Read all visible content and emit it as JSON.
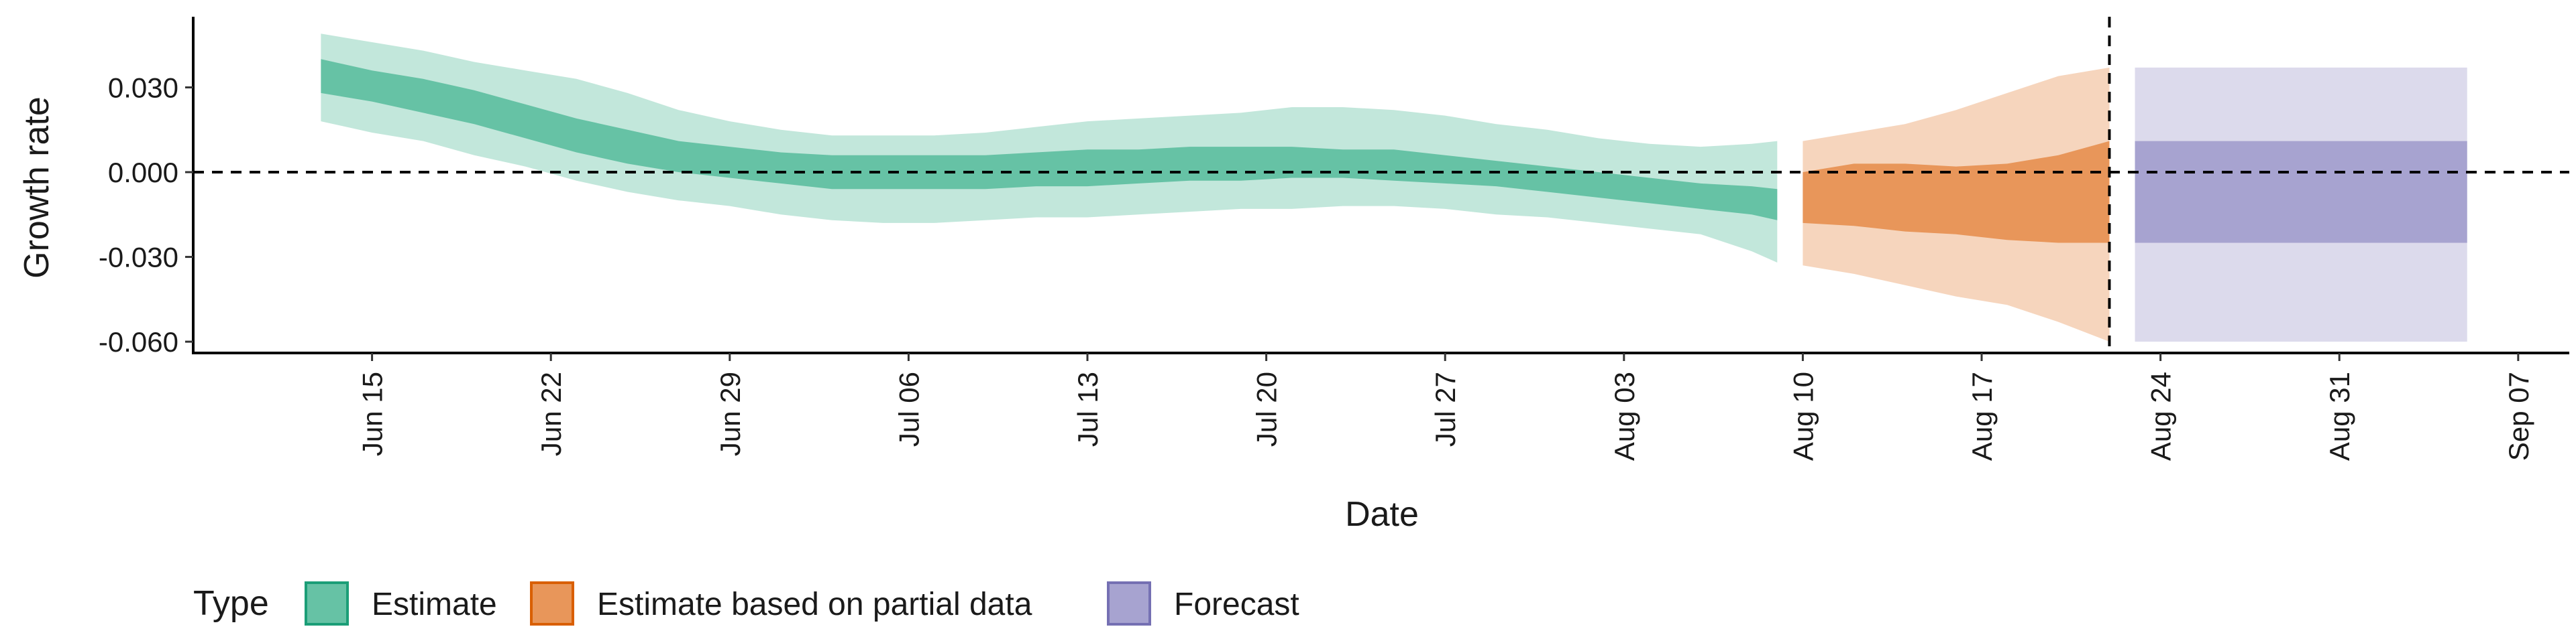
{
  "chart_data": {
    "type": "area",
    "title": "",
    "xlabel": "Date",
    "ylabel": "Growth rate",
    "ylim": [
      -0.064,
      0.055
    ],
    "xlim": [
      "2021-06-08",
      "2021-09-09"
    ],
    "y_ticks": [
      -0.06,
      -0.03,
      0.0,
      0.03
    ],
    "y_tick_labels": [
      "-0.060",
      "-0.030",
      "0.000",
      "0.030"
    ],
    "x_ticks": [
      "2021-06-15",
      "2021-06-22",
      "2021-06-29",
      "2021-07-06",
      "2021-07-13",
      "2021-07-20",
      "2021-07-27",
      "2021-08-03",
      "2021-08-10",
      "2021-08-17",
      "2021-08-24",
      "2021-08-31",
      "2021-09-07"
    ],
    "x_tick_labels": [
      "Jun 15",
      "Jun 22",
      "Jun 29",
      "Jul 06",
      "Jul 13",
      "Jul 20",
      "Jul 27",
      "Aug 03",
      "Aug 10",
      "Aug 17",
      "Aug 24",
      "Aug 31",
      "Sep 07"
    ],
    "grid": false,
    "reference_lines": {
      "horizontal_y": 0.0,
      "vertical_x": "2021-08-22"
    },
    "legend": {
      "title": "Type",
      "placement": "bottom",
      "entries": [
        {
          "label": "Estimate",
          "fill": "#66C2A5",
          "stroke": "#1B9E77"
        },
        {
          "label": "Estimate based on partial data",
          "fill": "#E8965A",
          "stroke": "#D95F02"
        },
        {
          "label": "Forecast",
          "fill": "#A7A3D0",
          "stroke": "#7570B3"
        }
      ]
    },
    "series": [
      {
        "name": "Estimate",
        "color": "#66C2A5",
        "outer_opacity": 0.4,
        "x": [
          "2021-06-13",
          "2021-06-15",
          "2021-06-17",
          "2021-06-19",
          "2021-06-21",
          "2021-06-23",
          "2021-06-25",
          "2021-06-27",
          "2021-06-29",
          "2021-07-01",
          "2021-07-03",
          "2021-07-05",
          "2021-07-07",
          "2021-07-09",
          "2021-07-11",
          "2021-07-13",
          "2021-07-15",
          "2021-07-17",
          "2021-07-19",
          "2021-07-21",
          "2021-07-23",
          "2021-07-25",
          "2021-07-27",
          "2021-07-29",
          "2021-07-31",
          "2021-08-02",
          "2021-08-04",
          "2021-08-06",
          "2021-08-08",
          "2021-08-09"
        ],
        "lower_90": [
          0.018,
          0.014,
          0.011,
          0.006,
          0.002,
          -0.003,
          -0.007,
          -0.01,
          -0.012,
          -0.015,
          -0.017,
          -0.018,
          -0.018,
          -0.017,
          -0.016,
          -0.016,
          -0.015,
          -0.014,
          -0.013,
          -0.013,
          -0.012,
          -0.012,
          -0.013,
          -0.015,
          -0.016,
          -0.018,
          -0.02,
          -0.022,
          -0.028,
          -0.032
        ],
        "upper_90": [
          0.049,
          0.046,
          0.043,
          0.039,
          0.036,
          0.033,
          0.028,
          0.022,
          0.018,
          0.015,
          0.013,
          0.013,
          0.013,
          0.014,
          0.016,
          0.018,
          0.019,
          0.02,
          0.021,
          0.023,
          0.023,
          0.022,
          0.02,
          0.017,
          0.015,
          0.012,
          0.01,
          0.009,
          0.01,
          0.011
        ],
        "lower_50": [
          0.028,
          0.025,
          0.021,
          0.017,
          0.012,
          0.007,
          0.003,
          0.0,
          -0.002,
          -0.004,
          -0.006,
          -0.006,
          -0.006,
          -0.006,
          -0.005,
          -0.005,
          -0.004,
          -0.003,
          -0.003,
          -0.002,
          -0.002,
          -0.003,
          -0.004,
          -0.005,
          -0.007,
          -0.009,
          -0.011,
          -0.013,
          -0.015,
          -0.017
        ],
        "upper_50": [
          0.04,
          0.036,
          0.033,
          0.029,
          0.024,
          0.019,
          0.015,
          0.011,
          0.009,
          0.007,
          0.006,
          0.006,
          0.006,
          0.006,
          0.007,
          0.008,
          0.008,
          0.009,
          0.009,
          0.009,
          0.008,
          0.008,
          0.006,
          0.004,
          0.002,
          0.0,
          -0.002,
          -0.004,
          -0.005,
          -0.006
        ]
      },
      {
        "name": "Estimate based on partial data",
        "color": "#E8965A",
        "outer_opacity": 0.4,
        "x": [
          "2021-08-10",
          "2021-08-12",
          "2021-08-14",
          "2021-08-16",
          "2021-08-18",
          "2021-08-20",
          "2021-08-22"
        ],
        "lower_90": [
          -0.033,
          -0.036,
          -0.04,
          -0.044,
          -0.047,
          -0.053,
          -0.06
        ],
        "upper_90": [
          0.011,
          0.014,
          0.017,
          0.022,
          0.028,
          0.034,
          0.037
        ],
        "lower_50": [
          -0.018,
          -0.019,
          -0.021,
          -0.022,
          -0.024,
          -0.025,
          -0.025
        ],
        "upper_50": [
          0.0,
          0.003,
          0.003,
          0.002,
          0.003,
          0.006,
          0.011
        ]
      },
      {
        "name": "Forecast",
        "color": "#A7A3D0",
        "outer_opacity": 0.4,
        "x": [
          "2021-08-23",
          "2021-09-05"
        ],
        "lower_90": [
          -0.06,
          -0.06
        ],
        "upper_90": [
          0.037,
          0.037
        ],
        "lower_50": [
          -0.025,
          -0.025
        ],
        "upper_50": [
          0.011,
          0.011
        ]
      }
    ]
  }
}
